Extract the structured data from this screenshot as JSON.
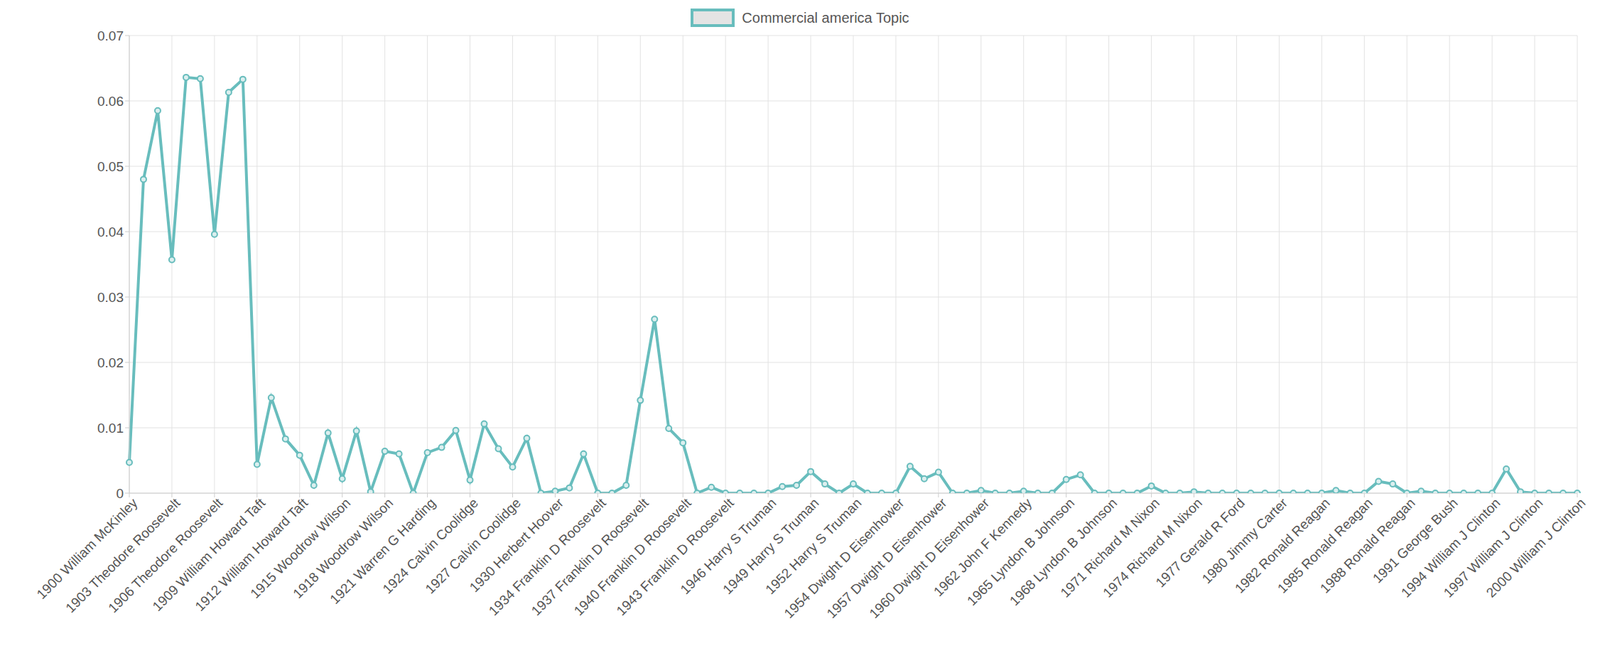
{
  "chart_data": {
    "type": "line",
    "categories": [
      "1900 William McKinley",
      null,
      null,
      "1903 Theodore Roosevelt",
      null,
      null,
      "1906 Theodore Roosevelt",
      null,
      null,
      "1909 William Howard Taft",
      null,
      null,
      "1912 William Howard Taft",
      null,
      null,
      "1915 Woodrow Wilson",
      null,
      null,
      "1918 Woodrow Wilson",
      null,
      null,
      "1921 Warren G Harding",
      null,
      null,
      "1924 Calvin Coolidge",
      null,
      null,
      "1927 Calvin Coolidge",
      null,
      null,
      "1930 Herbert Hoover",
      null,
      null,
      "1934 Franklin D Roosevelt",
      null,
      null,
      "1937 Franklin D Roosevelt",
      null,
      null,
      "1940 Franklin D Roosevelt",
      null,
      null,
      "1943 Franklin D Roosevelt",
      null,
      null,
      "1946 Harry S Truman",
      null,
      null,
      "1949 Harry S Truman",
      null,
      null,
      "1952 Harry S Truman",
      null,
      null,
      "1954 Dwight D Eisenhower",
      null,
      null,
      "1957 Dwight D Eisenhower",
      null,
      null,
      "1960 Dwight D Eisenhower",
      null,
      null,
      "1962 John F Kennedy",
      null,
      null,
      "1965 Lyndon B Johnson",
      null,
      null,
      "1968 Lyndon B Johnson",
      null,
      null,
      "1971 Richard M Nixon",
      null,
      null,
      "1974 Richard M Nixon",
      null,
      null,
      "1977 Gerald R Ford",
      null,
      null,
      "1980 Jimmy Carter",
      null,
      null,
      "1982 Ronald Reagan",
      null,
      null,
      "1985 Ronald Reagan",
      null,
      null,
      "1988 Ronald Reagan",
      null,
      null,
      "1991 George Bush",
      null,
      null,
      "1994 William J Clinton",
      null,
      null,
      "1997 William J Clinton",
      null,
      null,
      "2000 William J Clinton"
    ],
    "series": [
      {
        "name": "Commercial america Topic",
        "color": "#68bdbd",
        "values": [
          0.0047,
          0.048,
          0.0585,
          0.0357,
          0.0636,
          0.0634,
          0.0396,
          0.0613,
          0.0633,
          0.0044,
          0.0146,
          0.0083,
          0.0058,
          0.0012,
          0.0092,
          0.0022,
          0.0095,
          0.0002,
          0.0064,
          0.006,
          0,
          0.0062,
          0.007,
          0.0096,
          0.002,
          0.0106,
          0.0068,
          0.004,
          0.0084,
          0,
          0.0003,
          0.0008,
          0.006,
          0,
          0,
          0.0012,
          0.0142,
          0.0266,
          0.0099,
          0.0077,
          0,
          0.0009,
          0,
          0,
          0,
          0,
          0.001,
          0.0012,
          0.0033,
          0.0014,
          0,
          0.0014,
          0,
          0,
          0,
          0.0041,
          0.0022,
          0.0032,
          0,
          0,
          0.0004,
          0,
          0,
          0.0003,
          0,
          0,
          0.0021,
          0.0028,
          0,
          0,
          0,
          0,
          0.0011,
          0,
          0,
          0.0002,
          0,
          0,
          0,
          0,
          0,
          0,
          0,
          0,
          0,
          0.0004,
          0,
          0,
          0.0018,
          0.0014,
          0,
          0.0003,
          0,
          0,
          0,
          0,
          0,
          0.0037,
          0.0002,
          0,
          0,
          0,
          0
        ]
      }
    ],
    "ylim": [
      0,
      0.07
    ],
    "yticks": [
      0,
      0.01,
      0.02,
      0.03,
      0.04,
      0.05,
      0.06,
      0.07
    ],
    "grid": true,
    "legend": "top",
    "marker": "circle"
  }
}
